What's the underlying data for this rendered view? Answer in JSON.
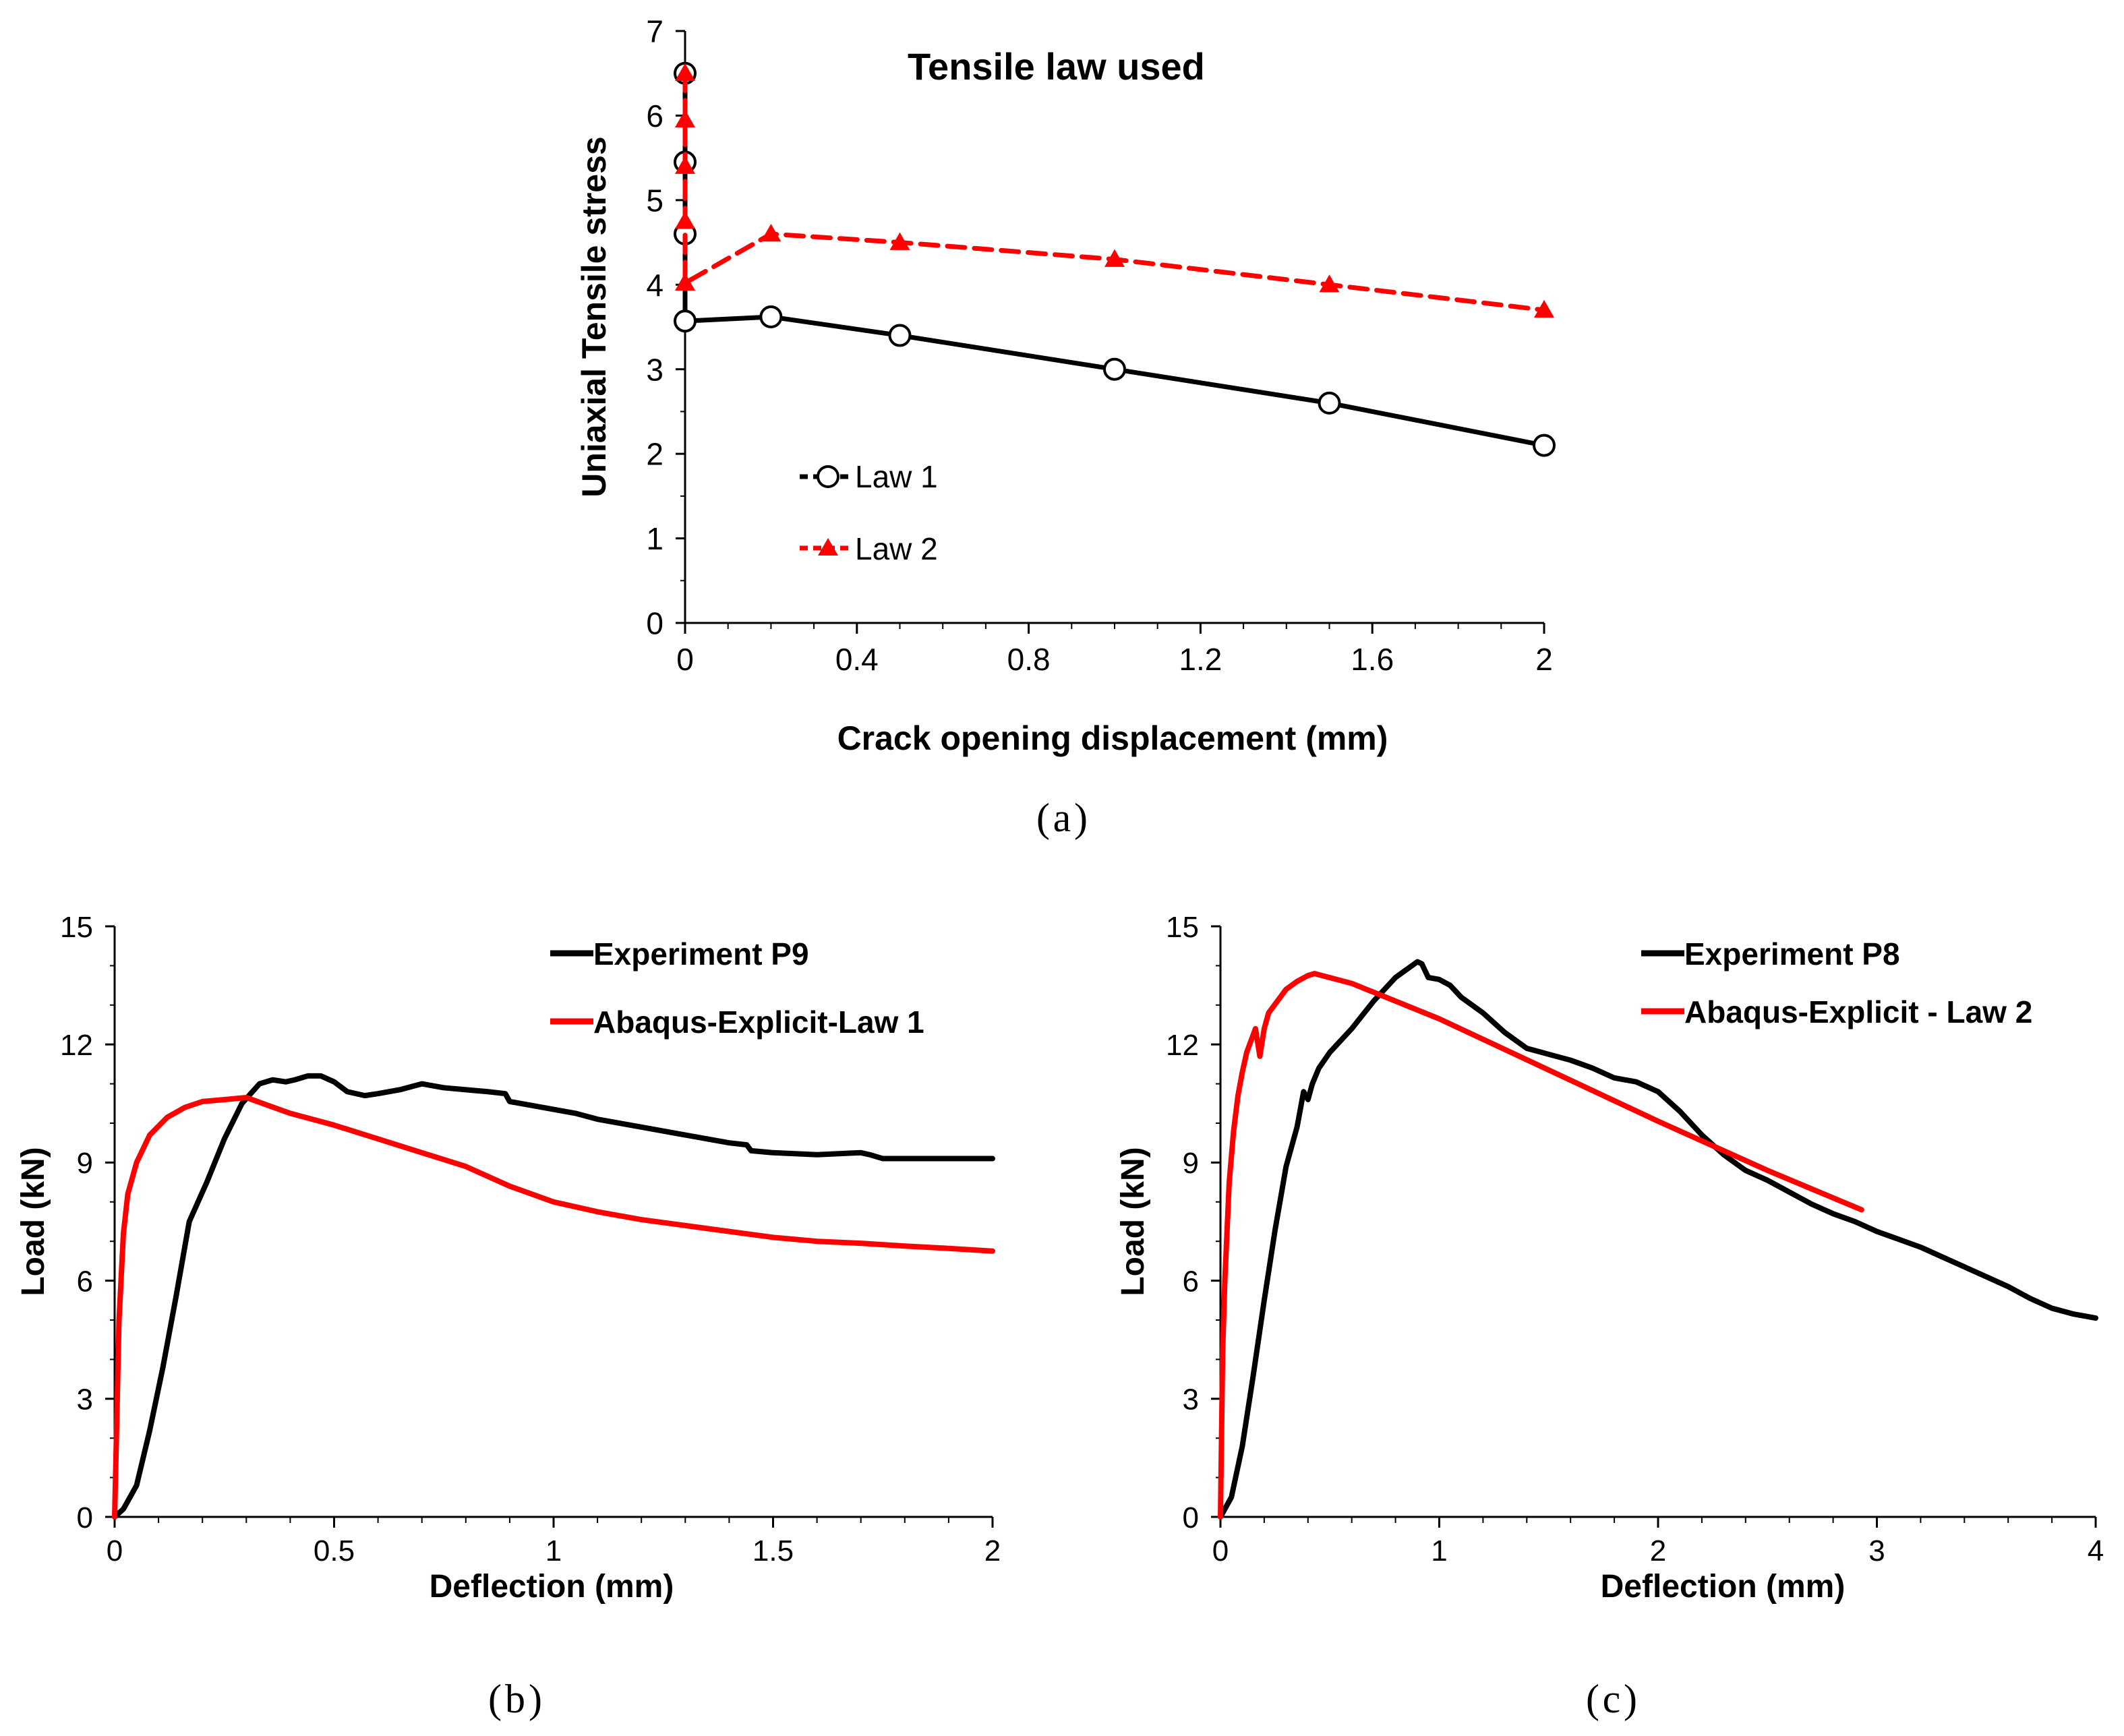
{
  "colors": {
    "black": "#000000",
    "red": "#ff0000"
  },
  "panels": {
    "a": {
      "caption_label": "a",
      "title": "Tensile law used",
      "xlabel": "Crack opening displacement (mm)",
      "ylabel": "Uniaxial Tensile stress",
      "x_tick_labels": [
        "0",
        "0.4",
        "0.8",
        "1.2",
        "1.6",
        "2"
      ],
      "y_tick_labels": [
        "0",
        "1",
        "2",
        "3",
        "4",
        "5",
        "6",
        "7"
      ]
    },
    "b": {
      "caption_label": "b",
      "xlabel": "Deflection (mm)",
      "ylabel": "Load (kN)",
      "x_tick_labels": [
        "0",
        "0.5",
        "1",
        "1.5",
        "2"
      ],
      "y_tick_labels": [
        "0",
        "3",
        "6",
        "9",
        "12",
        "15"
      ]
    },
    "c": {
      "caption_label": "c",
      "xlabel": "Deflection (mm)",
      "ylabel": "Load (kN)",
      "x_tick_labels": [
        "0",
        "1",
        "2",
        "3",
        "4"
      ],
      "y_tick_labels": [
        "0",
        "3",
        "6",
        "9",
        "12",
        "15"
      ]
    }
  },
  "chart_data": [
    {
      "panel": "a",
      "type": "line",
      "title": "Tensile law used",
      "xlabel": "Crack opening displacement (mm)",
      "ylabel": "Uniaxial Tensile stress",
      "xlim": [
        0,
        2
      ],
      "ylim": [
        0,
        7
      ],
      "xticks": [
        0,
        0.4,
        0.8,
        1.2,
        1.6,
        2
      ],
      "yticks": [
        0,
        1,
        2,
        3,
        4,
        5,
        6,
        7
      ],
      "legend_position": "lower-left",
      "series": [
        {
          "name": "Law 1",
          "color": "#000000",
          "marker": "circle",
          "style": "solid",
          "x": [
            0,
            0,
            0,
            0,
            0.2,
            0.5,
            1.0,
            1.5,
            2.0
          ],
          "y": [
            6.5,
            5.45,
            4.6,
            3.57,
            3.62,
            3.4,
            3.0,
            2.6,
            2.1
          ]
        },
        {
          "name": "Law 2",
          "color": "#ff0000",
          "marker": "triangle",
          "style": "dashed",
          "x": [
            0,
            0,
            0,
            0,
            0,
            0.2,
            0.5,
            1.0,
            1.5,
            2.0
          ],
          "y": [
            6.5,
            5.95,
            5.4,
            4.75,
            4.02,
            4.6,
            4.5,
            4.3,
            4.0,
            3.7
          ]
        }
      ]
    },
    {
      "panel": "b",
      "type": "line",
      "xlabel": "Deflection (mm)",
      "ylabel": "Load (kN)",
      "xlim": [
        0,
        2
      ],
      "ylim": [
        0,
        15
      ],
      "xticks": [
        0,
        0.5,
        1,
        1.5,
        2
      ],
      "yticks": [
        0,
        3,
        6,
        9,
        12,
        15
      ],
      "legend_position": "top-right",
      "series": [
        {
          "name": "Experiment P9",
          "color": "#000000",
          "x": [
            0,
            0.02,
            0.05,
            0.08,
            0.11,
            0.14,
            0.17,
            0.21,
            0.25,
            0.29,
            0.33,
            0.36,
            0.39,
            0.41,
            0.44,
            0.47,
            0.5,
            0.53,
            0.57,
            0.6,
            0.65,
            0.7,
            0.75,
            0.8,
            0.85,
            0.89,
            0.9,
            0.95,
            1.0,
            1.05,
            1.1,
            1.2,
            1.3,
            1.4,
            1.44,
            1.45,
            1.5,
            1.6,
            1.7,
            1.72,
            1.75,
            1.8,
            1.9,
            2.0
          ],
          "y": [
            0,
            0.2,
            0.8,
            2.2,
            3.8,
            5.6,
            7.5,
            8.5,
            9.6,
            10.5,
            11.0,
            11.1,
            11.05,
            11.1,
            11.2,
            11.2,
            11.05,
            10.8,
            10.7,
            10.75,
            10.85,
            11.0,
            10.9,
            10.85,
            10.8,
            10.75,
            10.55,
            10.45,
            10.35,
            10.25,
            10.1,
            9.9,
            9.7,
            9.5,
            9.45,
            9.3,
            9.25,
            9.2,
            9.25,
            9.2,
            9.1,
            9.1,
            9.1,
            9.1
          ]
        },
        {
          "name": "Abaqus-Explicit-Law 1",
          "color": "#ff0000",
          "x": [
            0,
            0.005,
            0.01,
            0.02,
            0.03,
            0.05,
            0.08,
            0.12,
            0.16,
            0.2,
            0.25,
            0.3,
            0.35,
            0.4,
            0.5,
            0.6,
            0.7,
            0.8,
            0.9,
            1.0,
            1.1,
            1.2,
            1.3,
            1.4,
            1.5,
            1.6,
            1.7,
            1.8,
            1.9,
            2.0
          ],
          "y": [
            0,
            2.5,
            5.0,
            7.2,
            8.2,
            9.0,
            9.7,
            10.15,
            10.4,
            10.55,
            10.6,
            10.65,
            10.45,
            10.25,
            9.95,
            9.6,
            9.25,
            8.9,
            8.4,
            8.0,
            7.75,
            7.55,
            7.4,
            7.25,
            7.1,
            7.0,
            6.95,
            6.88,
            6.82,
            6.75
          ]
        }
      ]
    },
    {
      "panel": "c",
      "type": "line",
      "xlabel": "Deflection (mm)",
      "ylabel": "Load (kN)",
      "xlim": [
        0,
        4
      ],
      "ylim": [
        0,
        15
      ],
      "xticks": [
        0,
        1,
        2,
        3,
        4
      ],
      "yticks": [
        0,
        3,
        6,
        9,
        12,
        15
      ],
      "legend_position": "top-right",
      "series": [
        {
          "name": "Experiment P8",
          "color": "#000000",
          "x": [
            0,
            0.05,
            0.1,
            0.15,
            0.2,
            0.25,
            0.3,
            0.35,
            0.38,
            0.4,
            0.42,
            0.45,
            0.5,
            0.6,
            0.7,
            0.8,
            0.9,
            0.92,
            0.95,
            1.0,
            1.05,
            1.1,
            1.2,
            1.3,
            1.4,
            1.5,
            1.6,
            1.7,
            1.8,
            1.9,
            2.0,
            2.1,
            2.2,
            2.3,
            2.4,
            2.5,
            2.6,
            2.7,
            2.8,
            2.9,
            3.0,
            3.1,
            3.2,
            3.3,
            3.4,
            3.5,
            3.6,
            3.7,
            3.8,
            3.9,
            4.0
          ],
          "y": [
            0,
            0.5,
            1.8,
            3.6,
            5.5,
            7.3,
            8.9,
            9.9,
            10.8,
            10.6,
            11.0,
            11.4,
            11.8,
            12.4,
            13.1,
            13.7,
            14.1,
            14.05,
            13.7,
            13.65,
            13.5,
            13.2,
            12.8,
            12.3,
            11.9,
            11.75,
            11.6,
            11.4,
            11.15,
            11.05,
            10.8,
            10.3,
            9.7,
            9.2,
            8.8,
            8.55,
            8.25,
            7.95,
            7.7,
            7.5,
            7.25,
            7.05,
            6.85,
            6.6,
            6.35,
            6.1,
            5.85,
            5.55,
            5.3,
            5.15,
            5.05
          ]
        },
        {
          "name": "Abaqus-Explicit - Law 2",
          "color": "#ff0000",
          "x": [
            0,
            0.01,
            0.02,
            0.04,
            0.06,
            0.08,
            0.1,
            0.12,
            0.14,
            0.16,
            0.18,
            0.2,
            0.22,
            0.26,
            0.3,
            0.35,
            0.4,
            0.43,
            0.6,
            1.0,
            1.5,
            2.0,
            2.5,
            2.93
          ],
          "y": [
            0,
            4.2,
            6.0,
            8.5,
            9.8,
            10.7,
            11.3,
            11.8,
            12.1,
            12.4,
            11.7,
            12.4,
            12.8,
            13.1,
            13.4,
            13.6,
            13.75,
            13.8,
            13.55,
            12.65,
            11.35,
            10.05,
            8.8,
            7.8
          ]
        }
      ]
    }
  ]
}
